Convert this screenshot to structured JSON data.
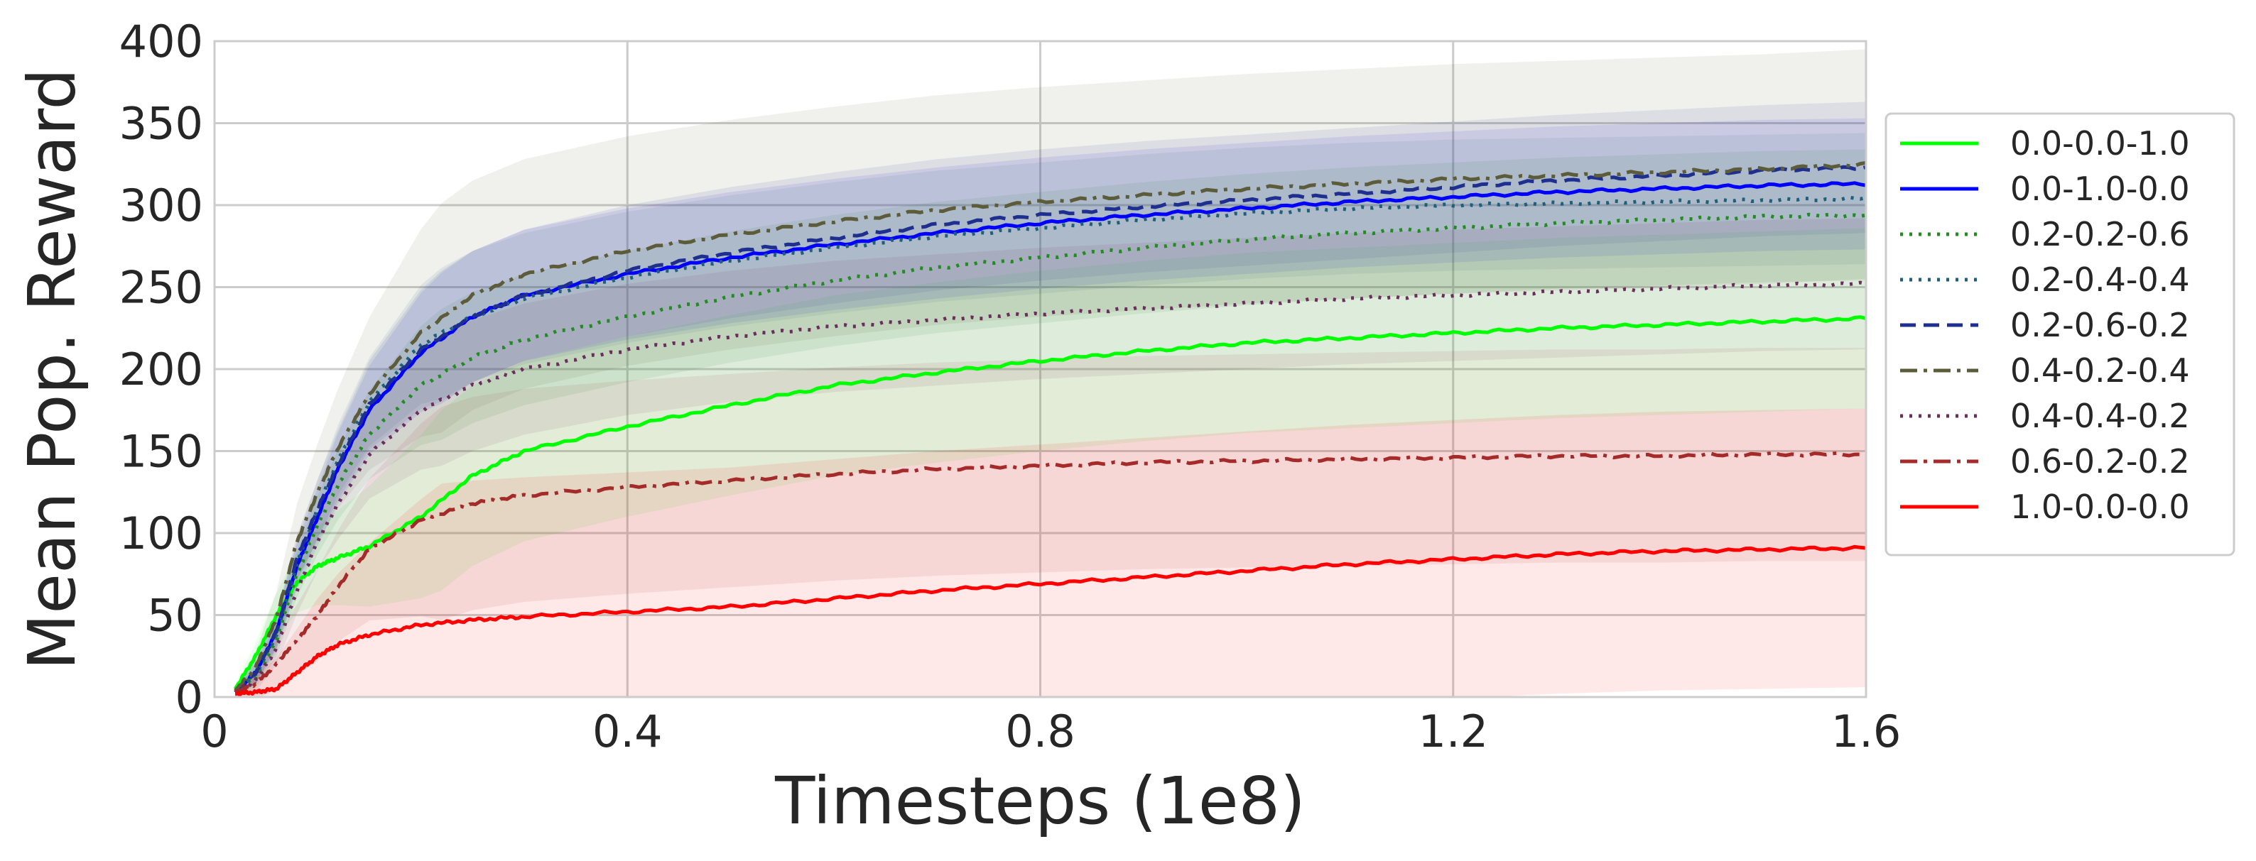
{
  "chart_data": {
    "type": "line",
    "title": "",
    "xlabel": "Timesteps (1e8)",
    "ylabel": "Mean Pop. Reward",
    "xlim": [
      0,
      1.6
    ],
    "ylim": [
      0,
      400
    ],
    "xticks": [
      0,
      0.4,
      0.8,
      1.2,
      1.6
    ],
    "xtick_labels": [
      "0",
      "0.4",
      "0.8",
      "1.2",
      "1.6"
    ],
    "yticks": [
      0,
      50,
      100,
      150,
      200,
      250,
      300,
      350,
      400
    ],
    "ytick_labels": [
      "0",
      "50",
      "100",
      "150",
      "200",
      "250",
      "300",
      "350",
      "400"
    ],
    "grid": true,
    "legend_position": "right, outside plot",
    "x": [
      0.02,
      0.04,
      0.06,
      0.08,
      0.1,
      0.12,
      0.15,
      0.2,
      0.25,
      0.3,
      0.4,
      0.5,
      0.6,
      0.7,
      0.8,
      0.9,
      1.0,
      1.1,
      1.2,
      1.3,
      1.4,
      1.5,
      1.6
    ],
    "series": [
      {
        "name": "0.0-0.0-1.0",
        "color": "#00ff00",
        "dash": "solid",
        "values": [
          5,
          25,
          50,
          70,
          80,
          85,
          92,
          110,
          135,
          150,
          165,
          178,
          190,
          198,
          205,
          211,
          216,
          219,
          222,
          225,
          227,
          229,
          231
        ],
        "band": [
          3,
          55
        ]
      },
      {
        "name": "0.0-1.0-0.0",
        "color": "#0000ff",
        "dash": "solid",
        "values": [
          3,
          15,
          40,
          80,
          110,
          140,
          175,
          210,
          232,
          245,
          258,
          268,
          276,
          283,
          289,
          294,
          298,
          302,
          305,
          308,
          310,
          312,
          313
        ],
        "band": [
          3,
          40
        ]
      },
      {
        "name": "0.2-0.2-0.6",
        "color": "#228b22",
        "dash": "dot",
        "values": [
          3,
          12,
          35,
          75,
          105,
          130,
          160,
          190,
          207,
          218,
          232,
          244,
          254,
          262,
          268,
          274,
          279,
          283,
          286,
          289,
          291,
          293,
          294
        ],
        "band": [
          3,
          40
        ]
      },
      {
        "name": "0.2-0.4-0.4",
        "color": "#1f5f7a",
        "dash": "dot",
        "values": [
          3,
          14,
          38,
          82,
          115,
          145,
          180,
          215,
          232,
          243,
          256,
          266,
          274,
          281,
          286,
          291,
          295,
          298,
          300,
          301,
          302,
          303,
          304
        ],
        "band": [
          3,
          40
        ]
      },
      {
        "name": "0.2-0.6-0.2",
        "color": "#1f2f8f",
        "dash": "dash",
        "values": [
          3,
          15,
          40,
          85,
          115,
          142,
          178,
          212,
          232,
          245,
          260,
          271,
          280,
          288,
          294,
          299,
          303,
          307,
          311,
          315,
          318,
          321,
          323
        ],
        "band": [
          3,
          40
        ]
      },
      {
        "name": "0.4-0.2-0.4",
        "color": "#5c5c3a",
        "dash": "dashdot",
        "values": [
          4,
          18,
          48,
          95,
          125,
          152,
          185,
          222,
          245,
          258,
          272,
          282,
          290,
          297,
          302,
          306,
          310,
          313,
          316,
          318,
          320,
          322,
          325
        ],
        "band": [
          3,
          70
        ]
      },
      {
        "name": "0.4-0.4-0.2",
        "color": "#6b2e5c",
        "dash": "dot",
        "values": [
          3,
          10,
          30,
          65,
          95,
          118,
          148,
          175,
          190,
          200,
          212,
          220,
          226,
          230,
          234,
          237,
          240,
          243,
          245,
          247,
          249,
          251,
          252
        ],
        "band": [
          3,
          40
        ]
      },
      {
        "name": "0.6-0.2-0.2",
        "color": "#a52a2a",
        "dash": "dashdot",
        "values": [
          3,
          8,
          20,
          35,
          50,
          68,
          90,
          108,
          118,
          123,
          128,
          132,
          136,
          139,
          141,
          143,
          144,
          145,
          146,
          147,
          147,
          148,
          148
        ],
        "band": [
          3,
          65
        ]
      },
      {
        "name": "1.0-0.0-0.0",
        "color": "#ff0000",
        "dash": "solid",
        "values": [
          2,
          3,
          5,
          15,
          25,
          32,
          38,
          44,
          47,
          49,
          52,
          55,
          60,
          65,
          69,
          73,
          77,
          81,
          84,
          87,
          89,
          90,
          91
        ],
        "band": [
          2,
          85
        ]
      }
    ]
  }
}
